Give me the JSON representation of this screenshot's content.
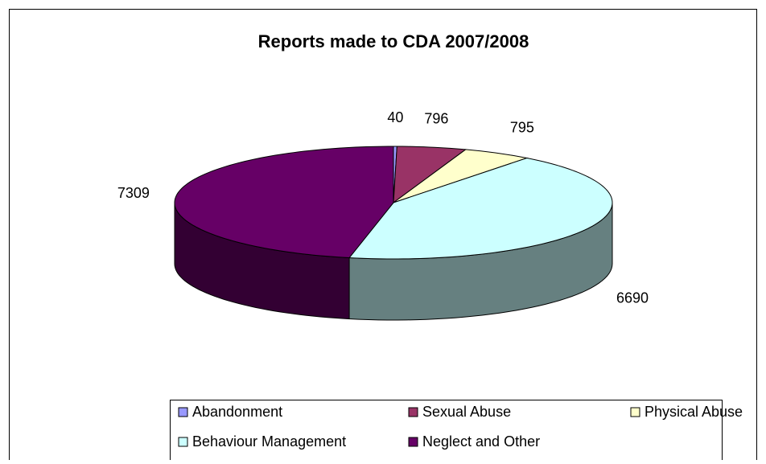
{
  "chart_data": {
    "type": "pie3d",
    "title": "Reports  made to CDA 2007/2008",
    "categories": [
      "Abandonment",
      "Sexual Abuse",
      "Physical Abuse",
      "Behaviour Management",
      "Neglect and Other"
    ],
    "values": [
      40,
      796,
      795,
      6690,
      7309
    ],
    "colors": [
      "#9999ff",
      "#993366",
      "#ffffcc",
      "#ccffff",
      "#660066"
    ],
    "legend": "bottom"
  }
}
